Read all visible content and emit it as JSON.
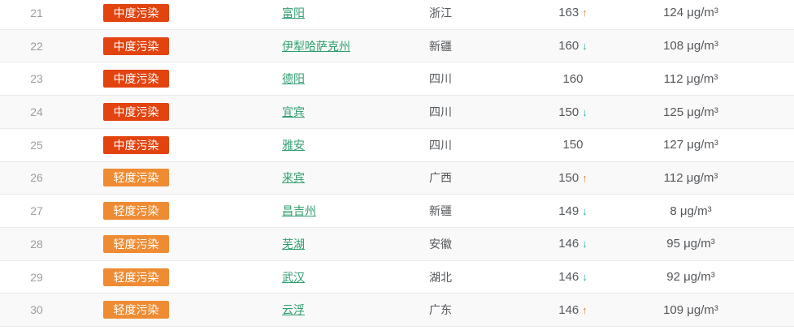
{
  "table": {
    "rows": [
      {
        "rank": "21",
        "level_label": "中度污染",
        "level_type": "moderate",
        "city": "富阳",
        "province": "浙江",
        "aqi": "163",
        "trend": "up",
        "concentration": "124 μg/m³"
      },
      {
        "rank": "22",
        "level_label": "中度污染",
        "level_type": "moderate",
        "city": "伊犁哈萨克州",
        "province": "新疆",
        "aqi": "160",
        "trend": "down",
        "concentration": "108 μg/m³"
      },
      {
        "rank": "23",
        "level_label": "中度污染",
        "level_type": "moderate",
        "city": "德阳",
        "province": "四川",
        "aqi": "160",
        "trend": "none",
        "concentration": "112 μg/m³"
      },
      {
        "rank": "24",
        "level_label": "中度污染",
        "level_type": "moderate",
        "city": "宜宾",
        "province": "四川",
        "aqi": "150",
        "trend": "down",
        "concentration": "125 μg/m³"
      },
      {
        "rank": "25",
        "level_label": "中度污染",
        "level_type": "moderate",
        "city": "雅安",
        "province": "四川",
        "aqi": "150",
        "trend": "none",
        "concentration": "127 μg/m³"
      },
      {
        "rank": "26",
        "level_label": "轻度污染",
        "level_type": "light",
        "city": "来宾",
        "province": "广西",
        "aqi": "150",
        "trend": "up",
        "concentration": "112 μg/m³"
      },
      {
        "rank": "27",
        "level_label": "轻度污染",
        "level_type": "light",
        "city": "昌吉州",
        "province": "新疆",
        "aqi": "149",
        "trend": "down",
        "concentration": "8 μg/m³"
      },
      {
        "rank": "28",
        "level_label": "轻度污染",
        "level_type": "light",
        "city": "芜湖",
        "province": "安徽",
        "aqi": "146",
        "trend": "down",
        "concentration": "95 μg/m³"
      },
      {
        "rank": "29",
        "level_label": "轻度污染",
        "level_type": "light",
        "city": "武汉",
        "province": "湖北",
        "aqi": "146",
        "trend": "down",
        "concentration": "92 μg/m³"
      },
      {
        "rank": "30",
        "level_label": "轻度污染",
        "level_type": "light",
        "city": "云浮",
        "province": "广东",
        "aqi": "146",
        "trend": "up",
        "concentration": "109 μg/m³"
      }
    ]
  },
  "icons": {
    "trend_up_glyph": "↑",
    "trend_down_glyph": "↓"
  },
  "colors": {
    "badge_moderate": "#e2430f",
    "badge_light": "#ef8c33",
    "city_link_green": "#2f9e6e",
    "trend_up_orange": "#e0883e",
    "trend_down_teal": "#2cb3ab",
    "alt_row_background": "#f9f9f9",
    "row_border": "#e9e9e9",
    "rank_text": "#9a9da0",
    "body_text": "#54575b"
  }
}
